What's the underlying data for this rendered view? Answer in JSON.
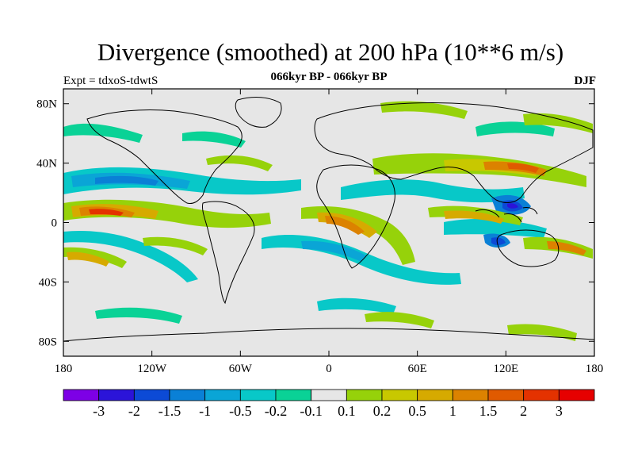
{
  "header": {
    "title": "Divergence (smoothed) at 200 hPa (10**6 m/s)",
    "subtitle": "066kyr BP - 066kyr BP",
    "left_string": "Expt = tdxoS-tdwtS",
    "right_string": "DJF"
  },
  "map": {
    "lat_ticks": [
      {
        "value": 80,
        "label": "80N"
      },
      {
        "value": 40,
        "label": "40N"
      },
      {
        "value": 0,
        "label": "0"
      },
      {
        "value": -40,
        "label": "40S"
      },
      {
        "value": -80,
        "label": "80S"
      }
    ],
    "lon_ticks": [
      {
        "value": -180,
        "label": "180"
      },
      {
        "value": -120,
        "label": "120W"
      },
      {
        "value": -60,
        "label": "60W"
      },
      {
        "value": 0,
        "label": "0"
      },
      {
        "value": 60,
        "label": "60E"
      },
      {
        "value": 120,
        "label": "120E"
      },
      {
        "value": 180,
        "label": "180"
      }
    ],
    "background_color": "#e6e6e6"
  },
  "colorbar": {
    "colors": [
      "#7d00e6",
      "#2b14d9",
      "#0c4ad6",
      "#0a80d6",
      "#0aa5d6",
      "#08c8c8",
      "#0ad296",
      "#e6e6e6",
      "#96d20a",
      "#c8c800",
      "#d6aa00",
      "#dc8200",
      "#e05a00",
      "#e43200",
      "#e60000"
    ],
    "labels": [
      "-3",
      "-2",
      "-1.5",
      "-1",
      "-0.5",
      "-0.2",
      "-0.1",
      "0.1",
      "0.2",
      "0.5",
      "1",
      "1.5",
      "2",
      "3"
    ]
  }
}
